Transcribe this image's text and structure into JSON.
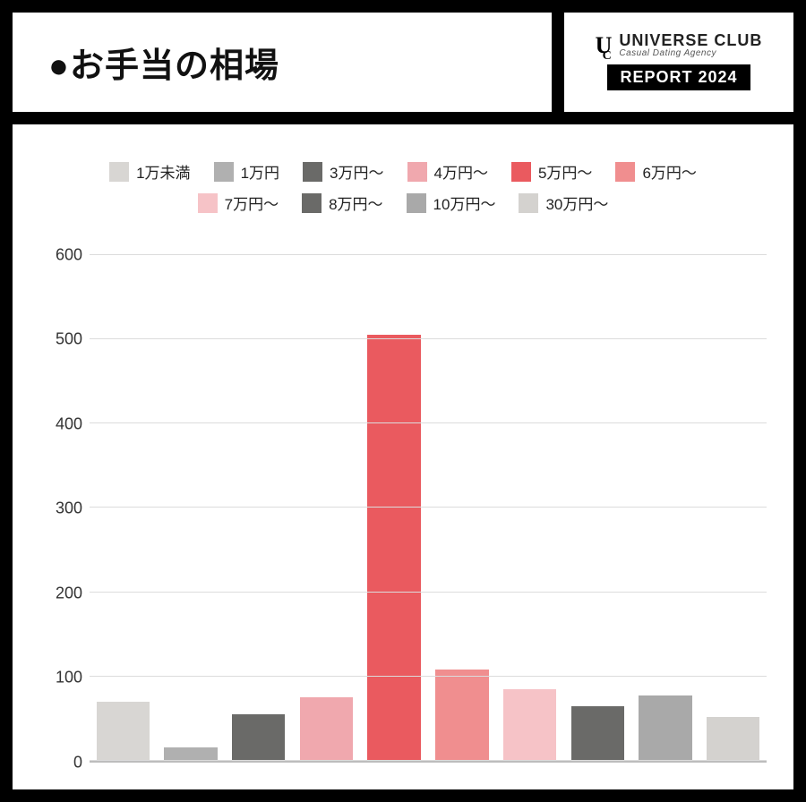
{
  "header": {
    "title": "●お手当の相場",
    "brand_name": "UNIVERSE CLUB",
    "brand_tagline": "Casual Dating Agency",
    "report_badge": "REPORT 2024",
    "logo_main": "U",
    "logo_sub": "C"
  },
  "chart": {
    "type": "bar",
    "y_axis": {
      "min": 0,
      "max": 640,
      "tick_step": 100,
      "ticks": [
        0,
        100,
        200,
        300,
        400,
        500,
        600
      ]
    },
    "grid_color": "#dcdcdc",
    "axis_color": "#bdbdbd",
    "background_color": "#ffffff",
    "legend_fontsize": 17,
    "tick_fontsize": 18,
    "bar_gap_pct": 2.2,
    "series": [
      {
        "label": "1万未満",
        "value": 70,
        "color": "#d8d6d3"
      },
      {
        "label": "1万円",
        "value": 16,
        "color": "#b0b0b0"
      },
      {
        "label": "3万円～",
        "value": 55,
        "color": "#6a6a68"
      },
      {
        "label": "4万円～",
        "value": 75,
        "color": "#f0a8ae"
      },
      {
        "label": "5万円～",
        "value": 505,
        "color": "#ea5a5f"
      },
      {
        "label": "6万円～",
        "value": 108,
        "color": "#f08e8f"
      },
      {
        "label": "7万円～",
        "value": 85,
        "color": "#f6c3c7"
      },
      {
        "label": "8万円～",
        "value": 65,
        "color": "#6a6a68"
      },
      {
        "label": "10万円～",
        "value": 78,
        "color": "#a9a9a9"
      },
      {
        "label": "30万円～",
        "value": 52,
        "color": "#d4d2cf"
      }
    ]
  }
}
